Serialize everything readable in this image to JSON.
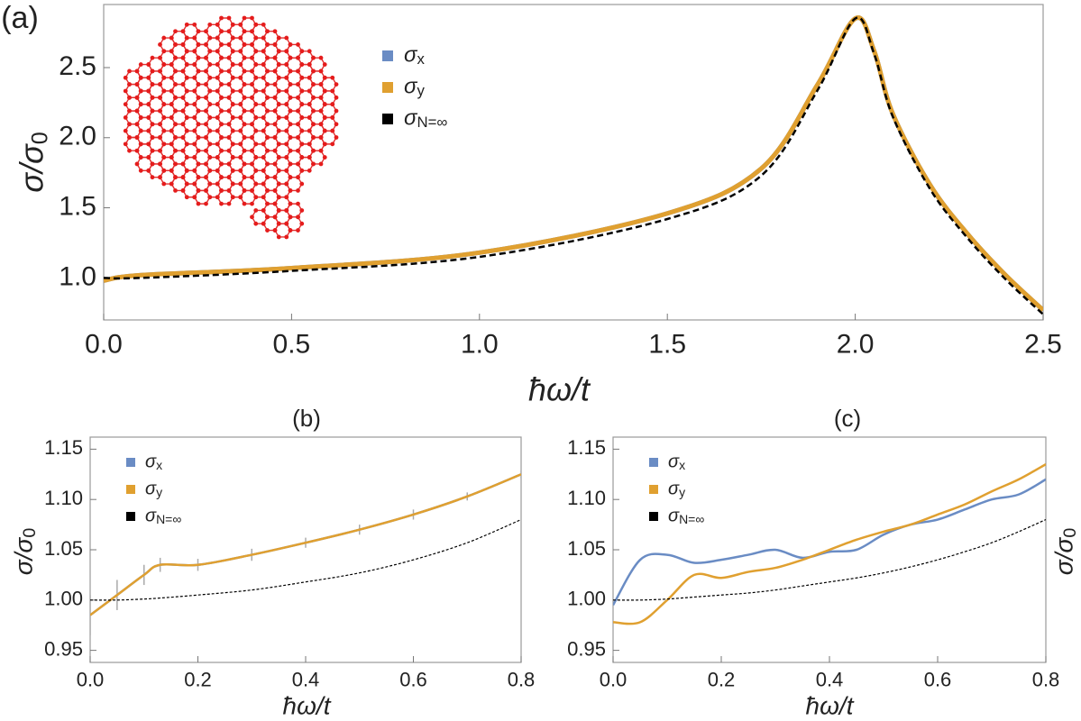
{
  "chart_data": [
    {
      "type": "line",
      "title": "(a)",
      "x_label": "ħω/t",
      "y_label": "σ/σ0",
      "x": [
        0,
        0.1,
        0.5,
        1.0,
        1.5,
        1.75,
        1.9,
        2.0,
        2.05,
        2.1,
        2.2,
        2.3,
        2.4,
        2.5
      ],
      "series": [
        {
          "name": "σx",
          "color": "#6a8cc4",
          "linestyle": "solid",
          "values": [
            0.98,
            1.02,
            1.07,
            1.18,
            1.46,
            1.78,
            2.38,
            2.85,
            2.62,
            2.17,
            1.66,
            1.31,
            1.02,
            0.77
          ]
        },
        {
          "name": "σy",
          "color": "#e0a030",
          "linestyle": "solid",
          "values": [
            0.98,
            1.02,
            1.07,
            1.18,
            1.46,
            1.78,
            2.38,
            2.85,
            2.62,
            2.17,
            1.66,
            1.31,
            1.02,
            0.77
          ]
        },
        {
          "name": "σN=∞",
          "color": "#000000",
          "linestyle": "dashed",
          "values": [
            1.0,
            1.0,
            1.05,
            1.15,
            1.42,
            1.73,
            2.34,
            2.85,
            2.6,
            2.15,
            1.63,
            1.28,
            0.99,
            0.74
          ]
        }
      ],
      "xlim": [
        0,
        2.5
      ],
      "ylim": [
        0.7,
        2.95
      ],
      "xticks": [
        {
          "value": 0,
          "label": "0.0"
        },
        0.5,
        {
          "value": 1,
          "label": "1.0"
        },
        1.5,
        {
          "value": 2,
          "label": "2.0"
        },
        2.5
      ],
      "yticks": [
        {
          "value": 1,
          "label": "1.0"
        },
        1.5,
        {
          "value": 2,
          "label": "2.0"
        },
        2.5
      ],
      "legend": "upper center"
    },
    {
      "type": "line",
      "title": "(b)",
      "x_label": "ħω/t",
      "y_label": "σ/σ0",
      "x": [
        0,
        0.05,
        0.1,
        0.13,
        0.2,
        0.3,
        0.4,
        0.5,
        0.6,
        0.7,
        0.8
      ],
      "series": [
        {
          "name": "σx",
          "color": "#6a8cc4",
          "linestyle": "solid",
          "values": [
            0.985,
            1.005,
            1.025,
            1.035,
            1.035,
            1.045,
            1.057,
            1.07,
            1.085,
            1.103,
            1.125
          ]
        },
        {
          "name": "σy",
          "color": "#e0a030",
          "linestyle": "solid",
          "values": [
            0.985,
            1.005,
            1.025,
            1.035,
            1.035,
            1.045,
            1.057,
            1.07,
            1.085,
            1.103,
            1.125
          ],
          "errors": [
            0.02,
            0.015,
            0.01,
            0.007,
            0.006,
            0.006,
            0.005,
            0.005,
            0.005,
            0.004,
            0.004
          ]
        },
        {
          "name": "σN=∞",
          "color": "#000000",
          "linestyle": "dashed",
          "values": [
            1.0,
            1.0,
            1.001,
            1.002,
            1.005,
            1.01,
            1.018,
            1.027,
            1.04,
            1.057,
            1.08
          ]
        }
      ],
      "xlim": [
        0,
        0.8
      ],
      "ylim": [
        0.938,
        1.162
      ],
      "xticks": [
        {
          "value": 0,
          "label": "0.0"
        },
        0.2,
        0.4,
        0.6,
        0.8
      ],
      "yticks": [
        0.95,
        {
          "value": 1,
          "label": "1.00"
        },
        1.05,
        {
          "value": 1.1,
          "label": "1.10"
        },
        1.15
      ],
      "legend": "upper left"
    },
    {
      "type": "line",
      "title": "(c)",
      "x_label": "ħω/t",
      "y_label": "σ/σ0",
      "x": [
        0,
        0.05,
        0.1,
        0.15,
        0.2,
        0.25,
        0.3,
        0.35,
        0.4,
        0.45,
        0.5,
        0.55,
        0.6,
        0.65,
        0.7,
        0.75,
        0.8
      ],
      "series": [
        {
          "name": "σx",
          "color": "#6a8cc4",
          "linestyle": "solid",
          "values": [
            0.995,
            1.04,
            1.045,
            1.037,
            1.04,
            1.045,
            1.05,
            1.042,
            1.048,
            1.05,
            1.065,
            1.075,
            1.08,
            1.09,
            1.1,
            1.105,
            1.12
          ]
        },
        {
          "name": "σy",
          "color": "#e0a030",
          "linestyle": "solid",
          "values": [
            0.978,
            0.978,
            1.0,
            1.025,
            1.022,
            1.028,
            1.032,
            1.04,
            1.05,
            1.06,
            1.068,
            1.075,
            1.085,
            1.095,
            1.108,
            1.12,
            1.135
          ]
        },
        {
          "name": "σN=∞",
          "color": "#000000",
          "linestyle": "dashed",
          "values": [
            1.0,
            1.0,
            1.001,
            1.003,
            1.005,
            1.007,
            1.01,
            1.014,
            1.018,
            1.022,
            1.027,
            1.033,
            1.04,
            1.048,
            1.057,
            1.068,
            1.08
          ]
        }
      ],
      "xlim": [
        0,
        0.8
      ],
      "ylim": [
        0.938,
        1.162
      ],
      "xticks": [
        {
          "value": 0,
          "label": "0.0"
        },
        0.2,
        0.4,
        0.6,
        0.8
      ],
      "yticks": [
        0.95,
        {
          "value": 1,
          "label": "1.00"
        },
        1.05,
        {
          "value": 1.1,
          "label": "1.10"
        },
        1.15
      ],
      "legend": "upper left"
    }
  ]
}
